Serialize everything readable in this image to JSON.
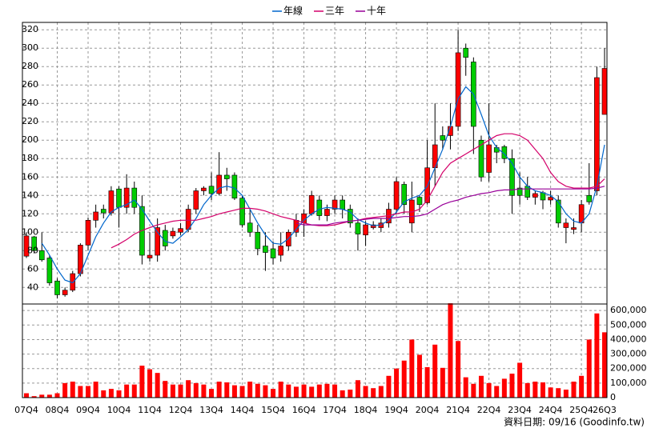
{
  "chart_data": {
    "type": "candlestick",
    "source": "資料日期: 09/16 (Goodinfo.tw)",
    "categories": [
      "07Q4",
      null,
      null,
      null,
      "08Q4",
      null,
      null,
      null,
      "09Q4",
      null,
      null,
      null,
      "10Q4",
      null,
      null,
      null,
      "11Q4",
      null,
      null,
      null,
      "12Q4",
      null,
      null,
      null,
      "13Q4",
      null,
      null,
      null,
      "14Q4",
      null,
      null,
      null,
      "15Q4",
      null,
      null,
      null,
      "16Q4",
      null,
      null,
      null,
      "17Q4",
      null,
      null,
      null,
      "18Q4",
      null,
      null,
      null,
      "19Q4",
      null,
      null,
      null,
      "20Q4",
      null,
      null,
      null,
      "21Q4",
      null,
      null,
      null,
      "22Q4",
      null,
      null,
      null,
      "23Q4",
      null,
      null,
      null,
      "24Q4",
      null,
      null,
      null,
      "25Q4",
      null,
      null,
      "26Q3"
    ],
    "open": [
      74,
      95,
      80,
      72,
      47,
      32,
      37,
      55,
      86,
      113,
      125,
      121,
      147,
      127,
      148,
      128,
      72,
      75,
      102,
      96,
      100,
      103,
      125,
      145,
      150,
      142,
      162,
      162,
      137,
      110,
      100,
      85,
      82,
      75,
      85,
      100,
      110,
      120,
      135,
      118,
      125,
      135,
      125,
      110,
      97,
      105,
      105,
      110,
      125,
      152,
      110,
      138,
      132,
      170,
      205,
      205,
      215,
      300,
      285,
      200,
      165,
      192,
      193,
      180,
      148,
      150,
      138,
      143,
      135,
      135,
      105,
      103,
      110,
      140,
      145,
      228
    ],
    "high": [
      100,
      96,
      100,
      75,
      50,
      40,
      58,
      88,
      116,
      130,
      130,
      150,
      150,
      163,
      155,
      140,
      100,
      115,
      108,
      105,
      110,
      130,
      148,
      150,
      165,
      187,
      170,
      165,
      140,
      125,
      108,
      100,
      90,
      100,
      103,
      120,
      125,
      145,
      140,
      130,
      140,
      140,
      130,
      115,
      112,
      112,
      115,
      132,
      160,
      155,
      155,
      140,
      200,
      240,
      215,
      240,
      320,
      305,
      290,
      205,
      240,
      195,
      195,
      190,
      165,
      160,
      145,
      145,
      145,
      140,
      115,
      115,
      135,
      175,
      280,
      300
    ],
    "low": [
      72,
      77,
      68,
      42,
      28,
      30,
      35,
      52,
      80,
      105,
      115,
      118,
      105,
      120,
      120,
      65,
      68,
      68,
      80,
      93,
      97,
      100,
      120,
      140,
      135,
      140,
      145,
      135,
      105,
      95,
      75,
      58,
      65,
      68,
      80,
      95,
      95,
      118,
      113,
      112,
      120,
      115,
      105,
      80,
      85,
      103,
      100,
      105,
      120,
      120,
      100,
      122,
      130,
      150,
      190,
      190,
      210,
      270,
      185,
      155,
      155,
      175,
      175,
      120,
      130,
      135,
      130,
      125,
      130,
      105,
      88,
      98,
      100,
      130,
      140,
      228
    ],
    "close": [
      96,
      80,
      70,
      45,
      32,
      37,
      55,
      86,
      113,
      122,
      121,
      145,
      127,
      148,
      127,
      75,
      75,
      105,
      85,
      101,
      104,
      125,
      145,
      148,
      142,
      162,
      158,
      137,
      108,
      100,
      82,
      78,
      72,
      85,
      100,
      113,
      120,
      140,
      118,
      125,
      135,
      125,
      110,
      98,
      108,
      108,
      110,
      125,
      155,
      130,
      135,
      130,
      170,
      195,
      200,
      215,
      295,
      290,
      215,
      160,
      195,
      187,
      180,
      140,
      140,
      138,
      142,
      135,
      138,
      110,
      110,
      105,
      130,
      133,
      268,
      278
    ],
    "volume": [
      30000,
      10000,
      20000,
      20000,
      30000,
      100000,
      110000,
      80000,
      80000,
      110000,
      50000,
      60000,
      50000,
      90000,
      90000,
      220000,
      195000,
      170000,
      115000,
      90000,
      90000,
      120000,
      100000,
      90000,
      60000,
      110000,
      105000,
      85000,
      80000,
      110000,
      95000,
      85000,
      60000,
      110000,
      90000,
      75000,
      90000,
      75000,
      90000,
      95000,
      90000,
      50000,
      55000,
      120000,
      80000,
      65000,
      80000,
      150000,
      200000,
      255000,
      400000,
      295000,
      210000,
      365000,
      205000,
      650000,
      390000,
      140000,
      95000,
      150000,
      100000,
      80000,
      130000,
      165000,
      240000,
      100000,
      110000,
      105000,
      70000,
      65000,
      55000,
      110000,
      150000,
      400000,
      580000,
      450000
    ],
    "up_color": "#ff0000",
    "down_color": "#00cc00",
    "volume_color": "#ff0000",
    "series": [
      {
        "name": "年線",
        "color": "#0066cc",
        "values": [
          null,
          null,
          88,
          75,
          60,
          48,
          45,
          55,
          75,
          95,
          110,
          122,
          127,
          130,
          135,
          125,
          112,
          100,
          90,
          88,
          95,
          103,
          115,
          130,
          140,
          148,
          150,
          148,
          140,
          125,
          110,
          97,
          88,
          87,
          93,
          103,
          113,
          120,
          125,
          127,
          126,
          125,
          122,
          114,
          110,
          107,
          108,
          113,
          122,
          133,
          137,
          140,
          150,
          170,
          190,
          215,
          245,
          258,
          250,
          228,
          205,
          192,
          185,
          175,
          160,
          150,
          145,
          143,
          140,
          133,
          120,
          112,
          110,
          120,
          150,
          195
        ]
      },
      {
        "name": "三年",
        "color": "#d4006a",
        "values": [
          null,
          null,
          null,
          null,
          null,
          null,
          null,
          null,
          null,
          null,
          null,
          83,
          87,
          92,
          98,
          102,
          105,
          108,
          110,
          112,
          113,
          113,
          113,
          115,
          117,
          120,
          122,
          124,
          126,
          126,
          125,
          123,
          120,
          117,
          115,
          113,
          110,
          108,
          107,
          107,
          108,
          110,
          112,
          113,
          115,
          116,
          117,
          118,
          120,
          122,
          122,
          125,
          135,
          150,
          165,
          175,
          180,
          185,
          190,
          195,
          200,
          205,
          207,
          207,
          205,
          200,
          190,
          180,
          165,
          155,
          150,
          148,
          148,
          148,
          150,
          158
        ]
      },
      {
        "name": "十年",
        "color": "#990099",
        "values": [
          null,
          null,
          null,
          null,
          null,
          null,
          null,
          null,
          null,
          null,
          null,
          null,
          null,
          null,
          null,
          null,
          null,
          null,
          null,
          null,
          null,
          null,
          null,
          null,
          null,
          null,
          null,
          null,
          null,
          null,
          null,
          null,
          null,
          null,
          null,
          110,
          108,
          108,
          108,
          108,
          110,
          111,
          112,
          113,
          114,
          115,
          115,
          115,
          116,
          117,
          117,
          118,
          120,
          125,
          130,
          133,
          135,
          138,
          140,
          142,
          143,
          145,
          146,
          146,
          147,
          147,
          147,
          147,
          147,
          147,
          147,
          147,
          147,
          147,
          148,
          150
        ]
      }
    ],
    "ylim": [
      22,
      328
    ],
    "yticks": [
      40,
      60,
      80,
      100,
      120,
      140,
      160,
      180,
      200,
      220,
      240,
      260,
      280,
      300,
      320
    ],
    "y2lim": [
      0,
      645000
    ],
    "y2ticks": [
      0,
      {
        "value": 100000,
        "label": "100,000"
      },
      {
        "value": 200000,
        "label": "200,000"
      },
      {
        "value": 300000,
        "label": "300,000"
      },
      {
        "value": 400000,
        "label": "400,000"
      },
      {
        "value": 500000,
        "label": "500,000"
      },
      {
        "value": 600000,
        "label": "600,000"
      }
    ],
    "grid": true
  }
}
